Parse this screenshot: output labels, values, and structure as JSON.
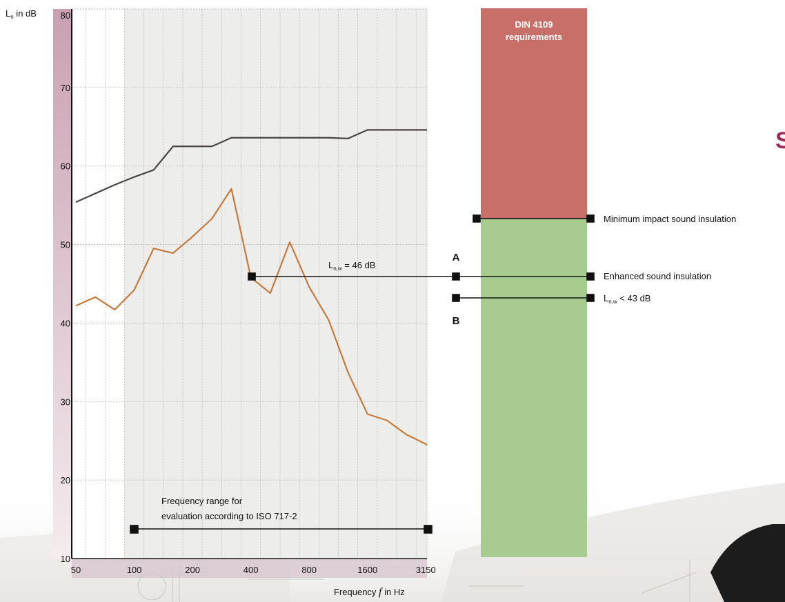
{
  "colors": {
    "upper_curve": "#4a4544",
    "lower_curve": "#c87a3a",
    "din_red": "#c96f6a",
    "din_green": "#a8cb90",
    "axis_band": "#c9a3b3",
    "grid_band": "#ededec",
    "heading_partial": "#9a2f58"
  },
  "y_axis": {
    "label_main": "L",
    "label_sub": "n",
    "label_rest": " in dB"
  },
  "x_axis": {
    "label_before": "Frequency ",
    "label_italic": "f",
    "label_after": " in Hz"
  },
  "din_box": {
    "line1": "DIN 4109",
    "line2": "requirements"
  },
  "annotations": {
    "A": "A",
    "B": "B",
    "lnw_main": "L",
    "lnw_sub": "n,w",
    "lnw_rest": " = 46 dB",
    "minimum": "Minimum impact sound insulation",
    "enhanced": "Enhanced sound insulation",
    "lt43_main": "L",
    "lt43_sub": "n,w",
    "lt43_rest": " < 43 dB",
    "freq_range_line1": "Frequency range for",
    "freq_range_line2": "evaluation according to ISO 717-2",
    "partial_heading": "S"
  },
  "chart_data": {
    "type": "line",
    "xlabel": "Frequency f in Hz",
    "ylabel": "Ln in dB",
    "x_tick_labels": [
      "50",
      "100",
      "200",
      "400",
      "800",
      "1600",
      "3150"
    ],
    "y_ticks": [
      10,
      20,
      30,
      40,
      50,
      60,
      70,
      80
    ],
    "ylim": [
      10,
      80
    ],
    "grid": true,
    "x": [
      "50",
      "63",
      "80",
      "100",
      "125",
      "160",
      "200",
      "250",
      "315",
      "400",
      "500",
      "630",
      "800",
      "1000",
      "1250",
      "1600",
      "2000",
      "2500",
      "3150"
    ],
    "series": [
      {
        "values": [
          55.4,
          56.5,
          57.6,
          58.6,
          59.5,
          62.5,
          62.5,
          62.5,
          63.6,
          63.6,
          63.6,
          63.6,
          63.6,
          63.6,
          63.5,
          64.6,
          64.6,
          64.6,
          64.6
        ]
      },
      {
        "values": [
          42.2,
          43.3,
          41.7,
          44.2,
          49.5,
          48.9,
          51.0,
          53.3,
          57.1,
          45.8,
          43.8,
          50.3,
          44.6,
          40.4,
          33.7,
          28.4,
          27.6,
          25.8,
          24.5
        ]
      }
    ],
    "reference_values": {
      "lnw": 46,
      "minimum": 53,
      "enhanced_threshold": 43
    }
  }
}
